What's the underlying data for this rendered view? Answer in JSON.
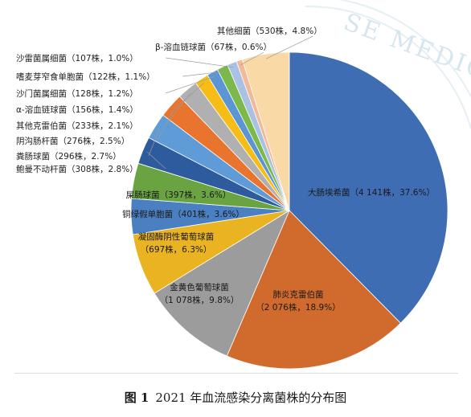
{
  "caption": {
    "figure_no": "图 1",
    "text": "2021 年血流感染分离菌株的分布图"
  },
  "watermark": {
    "text": "SE MEDIC"
  },
  "chart_data": {
    "type": "pie",
    "title": "",
    "start_angle_deg": 0,
    "direction": "clockwise",
    "slices": [
      {
        "name": "大肠埃希菌",
        "count": 4141,
        "percent": 37.6,
        "label": "大肠埃希菌（4 141株，37.6%）",
        "color": "#3e6db4",
        "label_position": "inside"
      },
      {
        "name": "肺炎克雷伯菌",
        "count": 2076,
        "percent": 18.9,
        "label_lines": [
          "肺炎克雷伯菌",
          "（2 076株，18.9%）"
        ],
        "color": "#d06a2d",
        "label_position": "inside"
      },
      {
        "name": "金黄色葡萄球菌",
        "count": 1078,
        "percent": 9.8,
        "label_lines": [
          "金黄色葡萄球菌",
          "（1 078株，9.8%）"
        ],
        "color": "#9c9c9c",
        "label_position": "inside"
      },
      {
        "name": "凝固酶阴性葡萄球菌",
        "count": 697,
        "percent": 6.3,
        "label_lines": [
          "凝固酶阴性葡萄球菌",
          "（697株，6.3%）"
        ],
        "color": "#e9b321",
        "label_position": "inside"
      },
      {
        "name": "铜绿假单胞菌",
        "count": 401,
        "percent": 3.6,
        "label": "铜绿假单胞菌（401株，3.6%）",
        "color": "#4a7fc2",
        "label_position": "inside"
      },
      {
        "name": "屎肠球菌",
        "count": 397,
        "percent": 3.6,
        "label": "屎肠球菌（397株，3.6%）",
        "color": "#6aa342",
        "label_position": "inside"
      },
      {
        "name": "鲍曼不动杆菌",
        "count": 308,
        "percent": 2.8,
        "label": "鲍曼不动杆菌（308株，2.8%）",
        "color": "#2e5a9e",
        "label_position": "outside"
      },
      {
        "name": "粪肠球菌",
        "count": 296,
        "percent": 2.7,
        "label": "粪肠球菌（296株，2.7%）",
        "color": "#5f9bd6",
        "label_position": "outside"
      },
      {
        "name": "阴沟肠杆菌",
        "count": 276,
        "percent": 2.5,
        "label": "阴沟肠杆菌（276株，2.5%）",
        "color": "#e8742e",
        "label_position": "outside"
      },
      {
        "name": "其他克雷伯菌",
        "count": 233,
        "percent": 2.1,
        "label": "其他克雷伯菌（233株，2.1%）",
        "color": "#b0b0b0",
        "label_position": "outside"
      },
      {
        "name": "α-溶血链球菌",
        "count": 156,
        "percent": 1.4,
        "label": "α-溶血链球菌（156株，1.4%）",
        "color": "#f5bd16",
        "label_position": "outside"
      },
      {
        "name": "沙门菌属细菌",
        "count": 128,
        "percent": 1.2,
        "label": "沙门菌属细菌（128株，1.2%）",
        "color": "#5b95d3",
        "label_position": "outside"
      },
      {
        "name": "嗜麦芽窄食单胞菌",
        "count": 122,
        "percent": 1.1,
        "label": "嗜麦芽窄食单胞菌（122株，1.1%）",
        "color": "#7cb84a",
        "label_position": "outside"
      },
      {
        "name": "沙雷菌属细菌",
        "count": 107,
        "percent": 1.0,
        "label": "沙雷菌属细菌（107株，1.0%）",
        "color": "#a9c1e2",
        "label_position": "outside"
      },
      {
        "name": "β-溶血链球菌",
        "count": 67,
        "percent": 0.6,
        "label": "β-溶血链球菌（67株，0.6%）",
        "color": "#f3b898",
        "label_position": "outside"
      },
      {
        "name": "其他细菌",
        "count": 530,
        "percent": 4.8,
        "label": "其他细菌（530株，4.8%）",
        "color": "#f9d9a6",
        "label_position": "outside"
      }
    ]
  }
}
